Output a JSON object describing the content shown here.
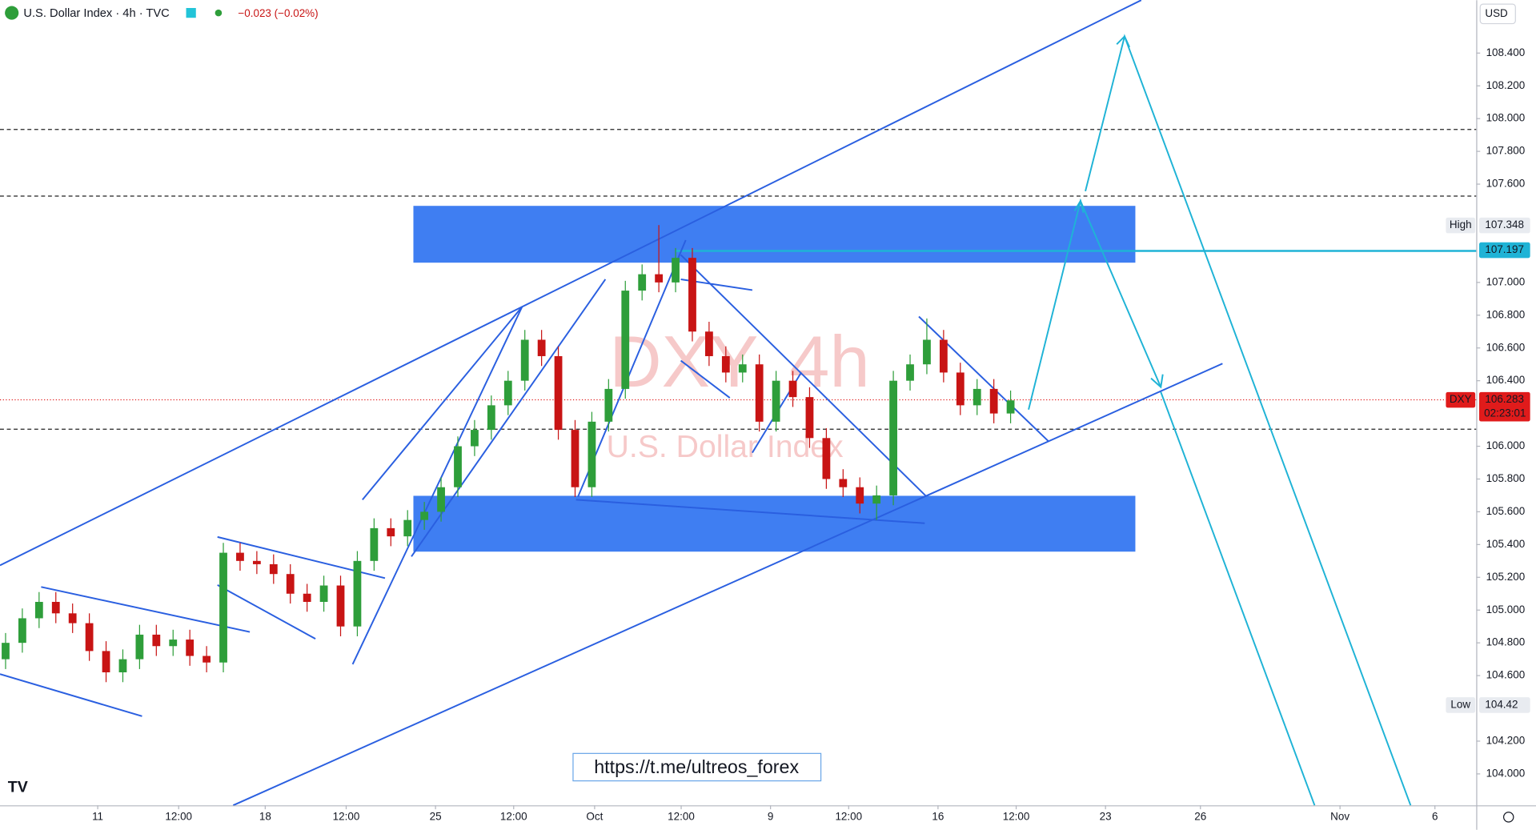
{
  "chart_data": {
    "type": "candlestick",
    "title": "U.S. Dollar Index · 4h · TVC",
    "change": "−0.023 (−0.02%)",
    "currency": "USD",
    "watermark": [
      "DXY, 4h",
      "U.S. Dollar Index"
    ],
    "link": "https://t.me/ultreos_forex",
    "up_color": "#2e9e3a",
    "down_color": "#c81414",
    "grid": false,
    "xlim": [
      0,
      264.4
    ],
    "ylim": [
      103.808,
      108.723
    ],
    "xticks": [
      {
        "value": 17.5,
        "label": "11"
      },
      {
        "value": 32,
        "label": "12:00"
      },
      {
        "value": 47.5,
        "label": "18"
      },
      {
        "value": 62,
        "label": "12:00"
      },
      {
        "value": 78,
        "label": "25"
      },
      {
        "value": 92,
        "label": "12:00"
      },
      {
        "value": 106.5,
        "label": "Oct"
      },
      {
        "value": 122,
        "label": "12:00"
      },
      {
        "value": 138,
        "label": "9"
      },
      {
        "value": 152,
        "label": "12:00"
      },
      {
        "value": 168,
        "label": "16"
      },
      {
        "value": 182,
        "label": "12:00"
      },
      {
        "value": 198,
        "label": "23"
      },
      {
        "value": 215,
        "label": "26"
      },
      {
        "value": 240,
        "label": "Nov"
      },
      {
        "value": 257,
        "label": "6"
      }
    ],
    "yticks": [
      {
        "value": 104.0,
        "label": "104.000"
      },
      {
        "value": 104.2,
        "label": "104.200"
      },
      {
        "value": 104.6,
        "label": "104.600"
      },
      {
        "value": 104.8,
        "label": "104.800"
      },
      {
        "value": 105.0,
        "label": "105.000"
      },
      {
        "value": 105.2,
        "label": "105.200"
      },
      {
        "value": 105.4,
        "label": "105.400"
      },
      {
        "value": 105.6,
        "label": "105.600"
      },
      {
        "value": 105.8,
        "label": "105.800"
      },
      {
        "value": 106.0,
        "label": "106.000"
      },
      {
        "value": 106.4,
        "label": "106.400"
      },
      {
        "value": 106.6,
        "label": "106.600"
      },
      {
        "value": 106.8,
        "label": "106.800"
      },
      {
        "value": 107.0,
        "label": "107.000"
      },
      {
        "value": 107.6,
        "label": "107.600"
      },
      {
        "value": 107.8,
        "label": "107.800"
      },
      {
        "value": 108.0,
        "label": "108.000"
      },
      {
        "value": 108.2,
        "label": "108.200"
      },
      {
        "value": 108.4,
        "label": "108.400"
      }
    ],
    "price_labels": [
      {
        "tag": "High",
        "value": 107.348,
        "color": "#e8ebf0",
        "text_color": "#131722"
      },
      {
        "value": 107.197,
        "color": "#1fb3d6",
        "text_color": "#131722"
      },
      {
        "tag": "DXY",
        "value": 106.283,
        "color": "#e01b1b",
        "text_color": "#ffffff",
        "countdown": "02:23:01"
      },
      {
        "tag": "Low",
        "value": 104.42,
        "color": "#e8ebf0",
        "text_color": "#131722"
      }
    ],
    "x": [
      1,
      4,
      7,
      10,
      13,
      16,
      19,
      22,
      25,
      28,
      31,
      34,
      37,
      40,
      43,
      46,
      49,
      52,
      55,
      58,
      61,
      64,
      67,
      70,
      73,
      76,
      79,
      82,
      85,
      88,
      91,
      94,
      97,
      100,
      103,
      106,
      109,
      112,
      115,
      118,
      121,
      124,
      127,
      130,
      133,
      136,
      139,
      142,
      145,
      148,
      151,
      154,
      157,
      160,
      163,
      166,
      169,
      172,
      175,
      178,
      181
    ],
    "open": [
      104.7,
      104.8,
      104.95,
      105.05,
      104.98,
      104.92,
      104.75,
      104.62,
      104.7,
      104.85,
      104.78,
      104.82,
      104.72,
      104.68,
      105.35,
      105.3,
      105.28,
      105.22,
      105.1,
      105.05,
      105.15,
      104.9,
      105.3,
      105.5,
      105.45,
      105.55,
      105.6,
      105.75,
      106.0,
      106.1,
      106.25,
      106.4,
      106.65,
      106.55,
      106.1,
      105.75,
      106.15,
      106.35,
      106.95,
      107.05,
      107.0,
      107.15,
      106.7,
      106.55,
      106.45,
      106.5,
      106.15,
      106.4,
      106.3,
      106.05,
      105.8,
      105.75,
      105.65,
      105.7,
      106.4,
      106.5,
      106.65,
      106.45,
      106.25,
      106.35,
      106.2
    ],
    "high": [
      104.86,
      105.01,
      105.11,
      105.11,
      105.04,
      104.98,
      104.81,
      104.76,
      104.91,
      104.91,
      104.88,
      104.88,
      104.78,
      105.41,
      105.41,
      105.36,
      105.34,
      105.28,
      105.16,
      105.21,
      105.21,
      105.36,
      105.56,
      105.56,
      105.61,
      105.66,
      105.81,
      106.06,
      106.16,
      106.31,
      106.46,
      106.71,
      106.71,
      106.61,
      106.16,
      106.21,
      106.41,
      107.01,
      107.11,
      107.35,
      107.21,
      107.21,
      106.76,
      106.61,
      106.56,
      106.56,
      106.46,
      106.46,
      106.36,
      106.11,
      105.86,
      105.81,
      105.76,
      106.46,
      106.56,
      106.78,
      106.71,
      106.51,
      106.41,
      106.41,
      106.34
    ],
    "low": [
      104.64,
      104.74,
      104.89,
      104.92,
      104.86,
      104.69,
      104.56,
      104.56,
      104.64,
      104.72,
      104.72,
      104.66,
      104.62,
      104.62,
      105.24,
      105.22,
      105.16,
      105.04,
      104.99,
      104.99,
      104.84,
      104.84,
      105.24,
      105.39,
      105.39,
      105.49,
      105.54,
      105.69,
      105.94,
      106.04,
      106.19,
      106.34,
      106.49,
      106.04,
      105.69,
      105.69,
      106.09,
      106.29,
      106.89,
      106.94,
      106.94,
      106.64,
      106.49,
      106.39,
      106.39,
      106.09,
      106.09,
      106.24,
      105.99,
      105.74,
      105.69,
      105.59,
      105.55,
      105.64,
      106.34,
      106.44,
      106.39,
      106.19,
      106.19,
      106.14,
      106.14
    ],
    "close": [
      104.8,
      104.95,
      105.05,
      104.98,
      104.92,
      104.75,
      104.62,
      104.7,
      104.85,
      104.78,
      104.82,
      104.72,
      104.68,
      105.35,
      105.3,
      105.28,
      105.22,
      105.1,
      105.05,
      105.15,
      104.9,
      105.3,
      105.5,
      105.45,
      105.55,
      105.6,
      105.75,
      106.0,
      106.1,
      106.25,
      106.4,
      106.65,
      106.55,
      106.1,
      105.75,
      106.15,
      106.35,
      106.95,
      107.05,
      107.0,
      107.15,
      106.7,
      106.55,
      106.45,
      106.5,
      106.15,
      106.4,
      106.3,
      106.05,
      105.8,
      105.75,
      105.65,
      105.7,
      106.4,
      106.5,
      106.65,
      106.45,
      106.25,
      106.35,
      106.2,
      106.28
    ]
  }
}
